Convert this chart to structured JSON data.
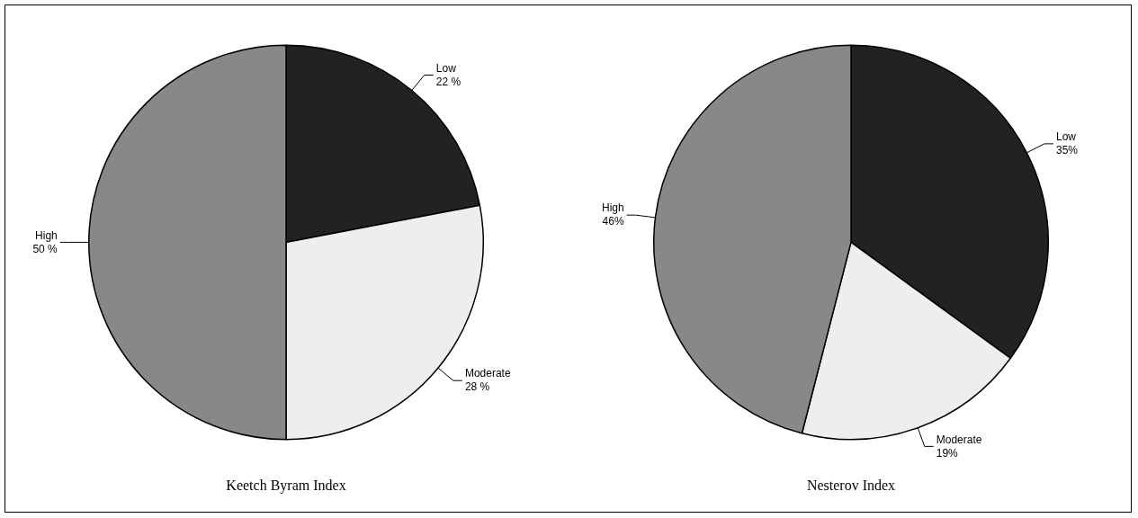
{
  "chart_data": [
    {
      "type": "pie",
      "title": "Keetch Byram Index",
      "categories": [
        "Low",
        "Moderate",
        "High"
      ],
      "values": [
        22,
        28,
        50
      ],
      "colors": [
        "#222222",
        "#eeeeee",
        "#888888"
      ],
      "value_labels": [
        "22 %",
        "28 %",
        "50 %"
      ],
      "legend": false
    },
    {
      "type": "pie",
      "title": "Nesterov Index",
      "categories": [
        "Low",
        "Moderate",
        "High"
      ],
      "values": [
        35,
        19,
        46
      ],
      "colors": [
        "#222222",
        "#eeeeee",
        "#888888"
      ],
      "value_labels": [
        "35%",
        "19%",
        "46%"
      ],
      "legend": false
    }
  ]
}
